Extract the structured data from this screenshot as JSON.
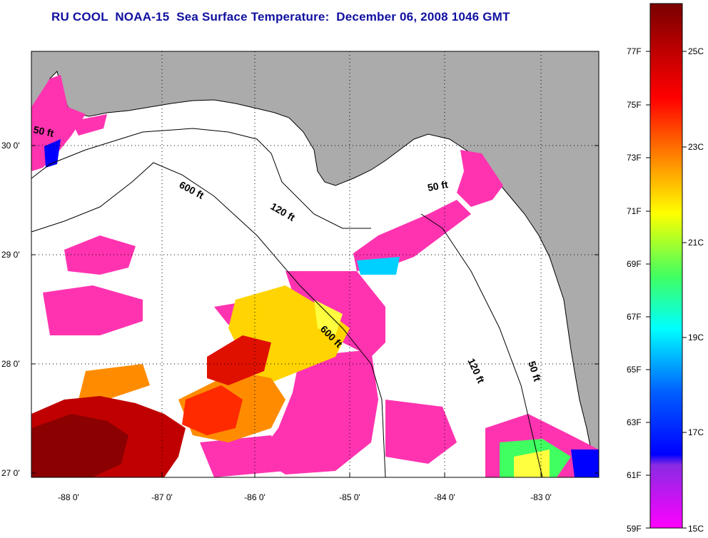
{
  "title": "RU COOL  NOAA-15  Sea Surface Temperature:  December 06, 2008 1046 GMT",
  "lat_ticks": [
    "30 0'",
    "29 0'",
    "28 0'",
    "27 0'"
  ],
  "lon_ticks": [
    "-88 0'",
    "-87 0'",
    "-86 0'",
    "-85 0'",
    "-84 0'",
    "-83 0'"
  ],
  "isobath_labels": {
    "west_50": "50 ft",
    "west_600": "600 ft",
    "west_120": "120 ft",
    "east_50": "50 ft",
    "mid_600": "600 ft",
    "east_120": "120 ft",
    "east_50b": "50 ft"
  },
  "colorbar": {
    "fahrenheit": [
      "77F",
      "75F",
      "73F",
      "71F",
      "69F",
      "67F",
      "65F",
      "63F",
      "61F",
      "59F"
    ],
    "celsius": [
      "25C",
      "23C",
      "21C",
      "19C",
      "17C",
      "15C"
    ],
    "colors": [
      "#8b0000",
      "#ff0000",
      "#ff8c00",
      "#ffff00",
      "#00ff7f",
      "#00ffff",
      "#0000ff",
      "#8a2be2",
      "#ff00ff"
    ]
  },
  "colors": {
    "land": "#ababab",
    "cloud": "#ffffff",
    "sst_cold": "#ff33b0",
    "sst_warm": "#a30000",
    "title": "#1010a0"
  }
}
